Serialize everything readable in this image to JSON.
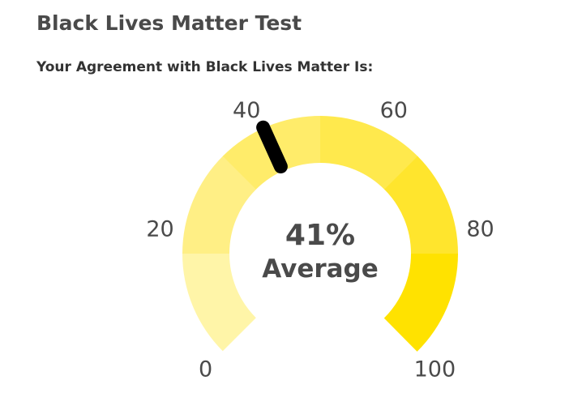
{
  "page": {
    "title": "Black Lives Matter Test",
    "subtitle": "Your Agreement with Black Lives Matter Is:"
  },
  "gauge": {
    "value": 41,
    "value_label": "41%",
    "category_label": "Average",
    "min": 0,
    "max": 100,
    "ticks": [
      "0",
      "20",
      "40",
      "60",
      "80",
      "100"
    ],
    "band_colors": [
      "#FFF5A8",
      "#FFEF85",
      "#FFEC6A",
      "#FFE94D",
      "#FFE52D",
      "#FFE200"
    ],
    "needle_color": "#000000"
  }
}
